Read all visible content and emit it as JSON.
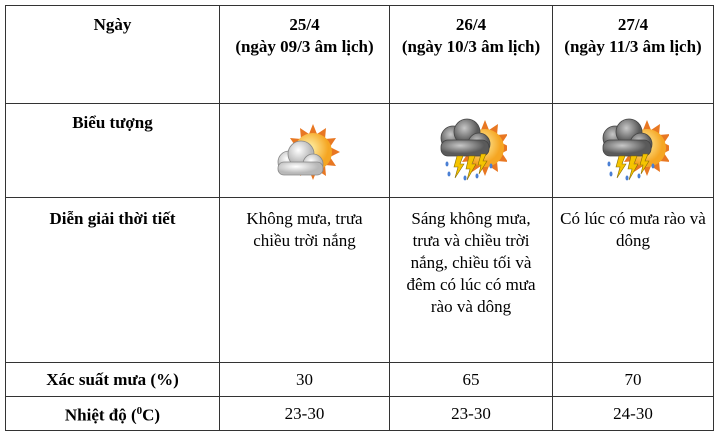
{
  "table": {
    "header_label": "Ngày",
    "days": [
      {
        "date": "25/4",
        "lunar": "(ngày 09/3 âm lịch)",
        "icon": "sun-cloud-icon",
        "description": "Không mưa, trưa chiều trời nắng",
        "rain_probability": "30",
        "temperature": "23-30"
      },
      {
        "date": "26/4",
        "lunar": "(ngày 10/3 âm lịch)",
        "icon": "thunderstorm-sun-icon",
        "description": "Sáng không mưa, trưa và chiều trời nắng, chiều tối và đêm có lúc có mưa rào và dông",
        "rain_probability": "65",
        "temperature": "23-30"
      },
      {
        "date": "27/4",
        "lunar": "(ngày 11/3 âm lịch)",
        "icon": "thunderstorm-sun-icon",
        "description": "Có lúc có mưa rào và dông",
        "rain_probability": "70",
        "temperature": "24-30"
      }
    ],
    "row_labels": {
      "icon": "Biểu tượng",
      "description": "Diễn giải thời tiết",
      "rain": "Xác suất mưa (%)",
      "temp_prefix": "Nhiệt độ (",
      "temp_sup": "0",
      "temp_suffix": "C)"
    }
  }
}
